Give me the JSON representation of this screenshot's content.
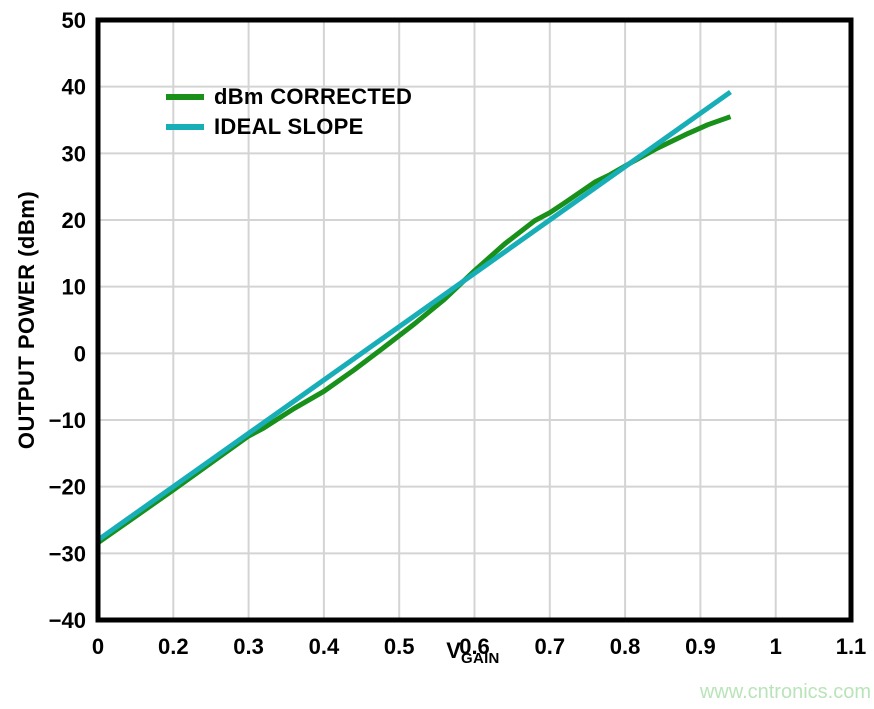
{
  "figure": {
    "ylabel": "OUTPUT POWER (dBm)",
    "xlabel_main": "V",
    "xlabel_sub": "GAIN",
    "watermark_text": "www.cntronics.com"
  },
  "colors": {
    "background": "#ffffff",
    "frame": "#000000",
    "grid": "#d4d4d4",
    "tick_text": "#000000",
    "watermark": "#b9e4b9",
    "series_green": "#18901a",
    "series_teal": "#17aeb8"
  },
  "chart_data": {
    "type": "line",
    "title": "",
    "xlabel": "VGAIN",
    "ylabel": "OUTPUT POWER (dBm)",
    "grid": true,
    "legend_position": "upper-left-inside",
    "x_axis": {
      "tick_labels": [
        "0",
        "0.2",
        "0.3",
        "0.4",
        "0.5",
        "0.6",
        "0.7",
        "0.8",
        "0.9",
        "1",
        "1.1"
      ],
      "note": "ticks evenly spaced on axis; first division spans 0 to 0.2 V, all later divisions span 0.1 V",
      "range": [
        0,
        1.1
      ]
    },
    "y_axis": {
      "ticks": [
        50,
        40,
        30,
        20,
        10,
        0,
        -10,
        -20,
        -30,
        -40
      ],
      "tick_labels": [
        "50",
        "40",
        "30",
        "20",
        "10",
        "0",
        "−10",
        "−20",
        "−30",
        "−40"
      ],
      "range": [
        -40,
        50
      ],
      "label": "OUTPUT POWER (dBm)"
    },
    "series": [
      {
        "name": "dBm CORRECTED",
        "color": "#18901a",
        "points": [
          [
            0,
            -28.4
          ],
          [
            0.2,
            -20.5
          ],
          [
            0.3,
            -12.4
          ],
          [
            0.32,
            -11.2
          ],
          [
            0.36,
            -8.3
          ],
          [
            0.4,
            -5.7
          ],
          [
            0.44,
            -2.5
          ],
          [
            0.48,
            0.9
          ],
          [
            0.52,
            4.4
          ],
          [
            0.56,
            8.1
          ],
          [
            0.6,
            12.4
          ],
          [
            0.64,
            16.4
          ],
          [
            0.68,
            19.9
          ],
          [
            0.7,
            21.1
          ],
          [
            0.72,
            22.6
          ],
          [
            0.76,
            25.7
          ],
          [
            0.78,
            26.8
          ],
          [
            0.8,
            28.1
          ],
          [
            0.84,
            30.6
          ],
          [
            0.88,
            32.8
          ],
          [
            0.91,
            34.3
          ],
          [
            0.94,
            35.5
          ]
        ]
      },
      {
        "name": "IDEAL SLOPE",
        "color": "#17aeb8",
        "points": [
          [
            0,
            -28
          ],
          [
            0.94,
            39.2
          ]
        ]
      }
    ],
    "watermark": {
      "text": "www.cntronics.com",
      "color": "#b9e4b9"
    }
  }
}
